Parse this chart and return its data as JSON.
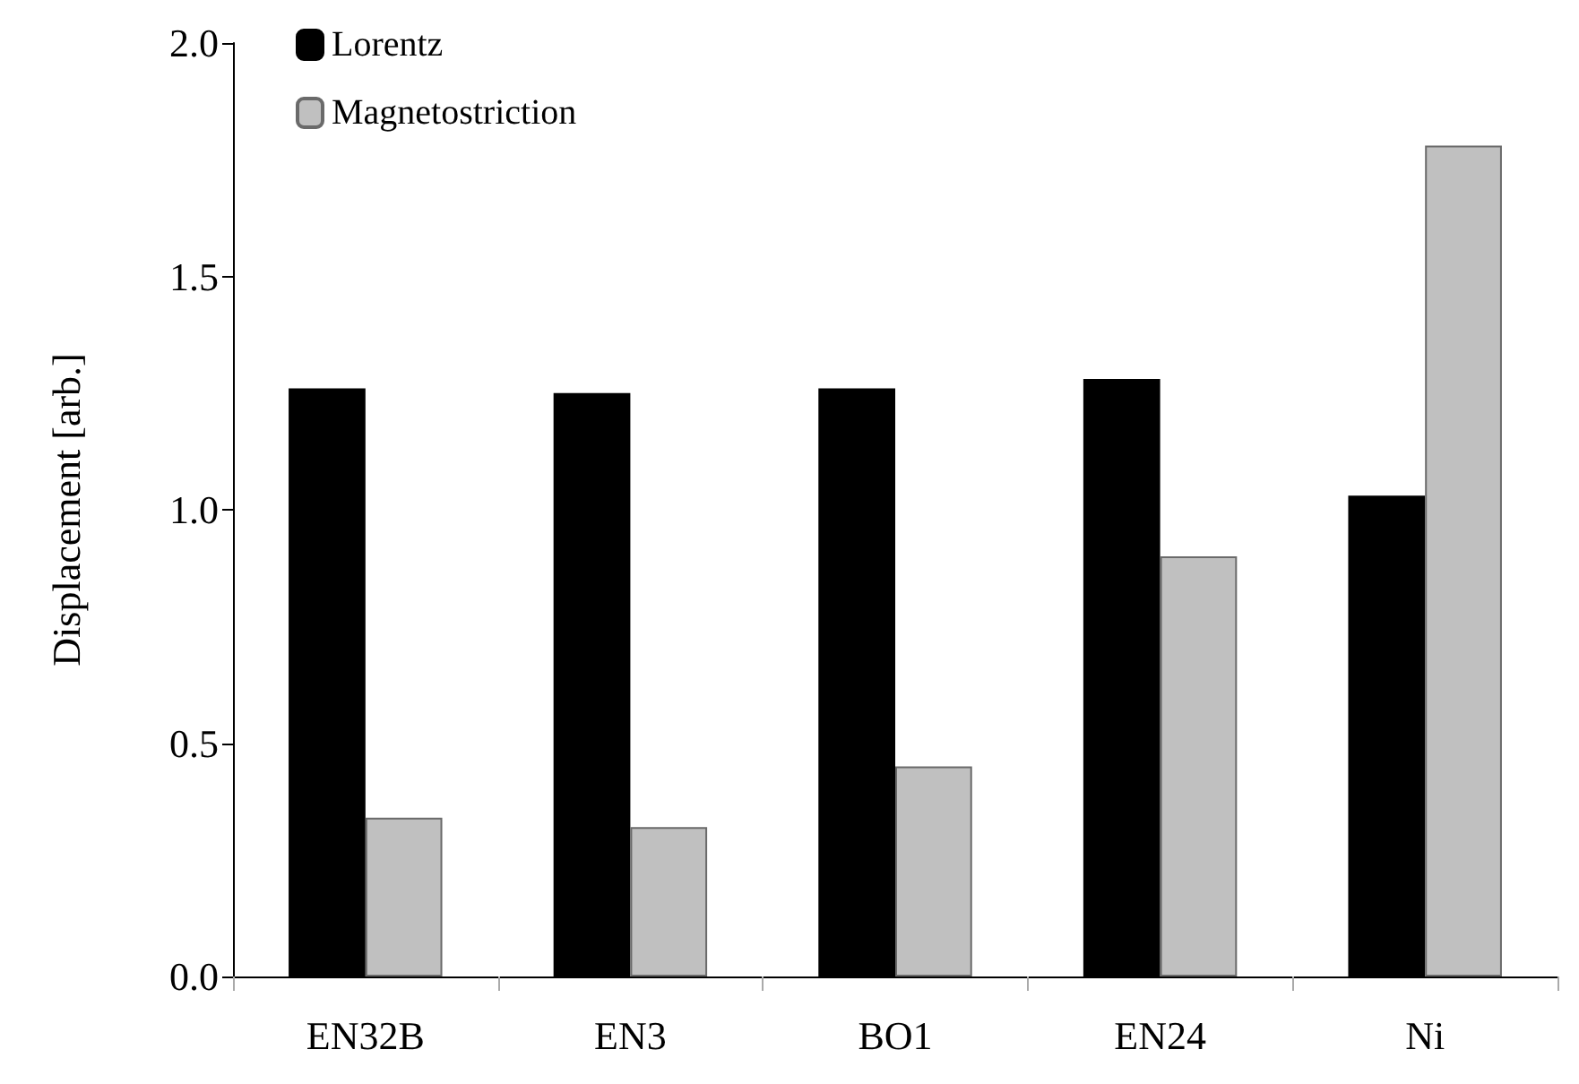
{
  "chart_data": {
    "type": "bar",
    "ylabel": "Displacement [arb.]",
    "categories": [
      "EN32B",
      "EN3",
      "BO1",
      "EN24",
      "Ni"
    ],
    "series": [
      {
        "name": "Lorentz",
        "color": "#000000",
        "values": [
          1.26,
          1.25,
          1.26,
          1.28,
          1.03
        ]
      },
      {
        "name": "Magnetostriction",
        "color": "#c0c0c0",
        "values": [
          0.34,
          0.32,
          0.45,
          0.9,
          1.78
        ]
      }
    ],
    "ylim": [
      0,
      2
    ],
    "yticks": [
      {
        "value": 0,
        "label": "0.0"
      },
      {
        "value": 0.5,
        "label": "0.5"
      },
      {
        "value": 1,
        "label": "1.0"
      },
      {
        "value": 1.5,
        "label": "1.5"
      },
      {
        "value": 2,
        "label": "2.0"
      }
    ],
    "grid": false,
    "legend": "top left"
  }
}
